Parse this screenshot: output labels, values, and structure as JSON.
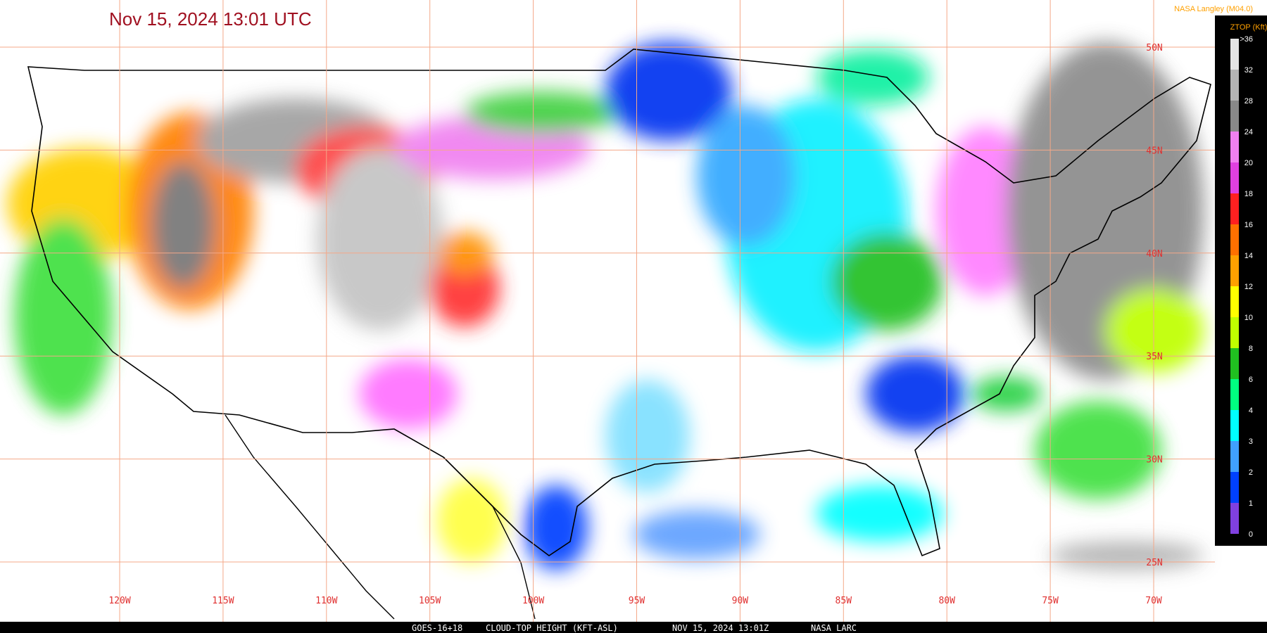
{
  "header": {
    "title": "Nov 15, 2024 13:01 UTC",
    "credit": "NASA Langley (M04.0)"
  },
  "legend": {
    "title": "ZTOP (Kft)",
    "labels": [
      ">36",
      "32",
      "28",
      "24",
      "20",
      "18",
      "16",
      "14",
      "12",
      "10",
      "8",
      "6",
      "4",
      "3",
      "2",
      "1",
      "0"
    ],
    "colors": [
      "#e4e4e4",
      "#b4b4b4",
      "#888888",
      "#f080f0",
      "#e040e0",
      "#ff2020",
      "#ff7000",
      "#ffa000",
      "#ffff00",
      "#c0ff00",
      "#20c020",
      "#00ff80",
      "#00ffff",
      "#40a0ff",
      "#0040ff",
      "#8040e0"
    ]
  },
  "grid": {
    "latitudes": [
      "50N",
      "45N",
      "40N",
      "35N",
      "30N",
      "25N"
    ],
    "longitudes": [
      "120W",
      "115W",
      "110W",
      "105W",
      "100W",
      "95W",
      "90W",
      "85W",
      "80W",
      "75W",
      "70W"
    ]
  },
  "footer": {
    "parts": [
      "GOES-16+18",
      "CLOUD-TOP HEIGHT (KFT-ASL)",
      "NOV 15, 2024 13:01Z",
      "NASA LARC"
    ]
  }
}
